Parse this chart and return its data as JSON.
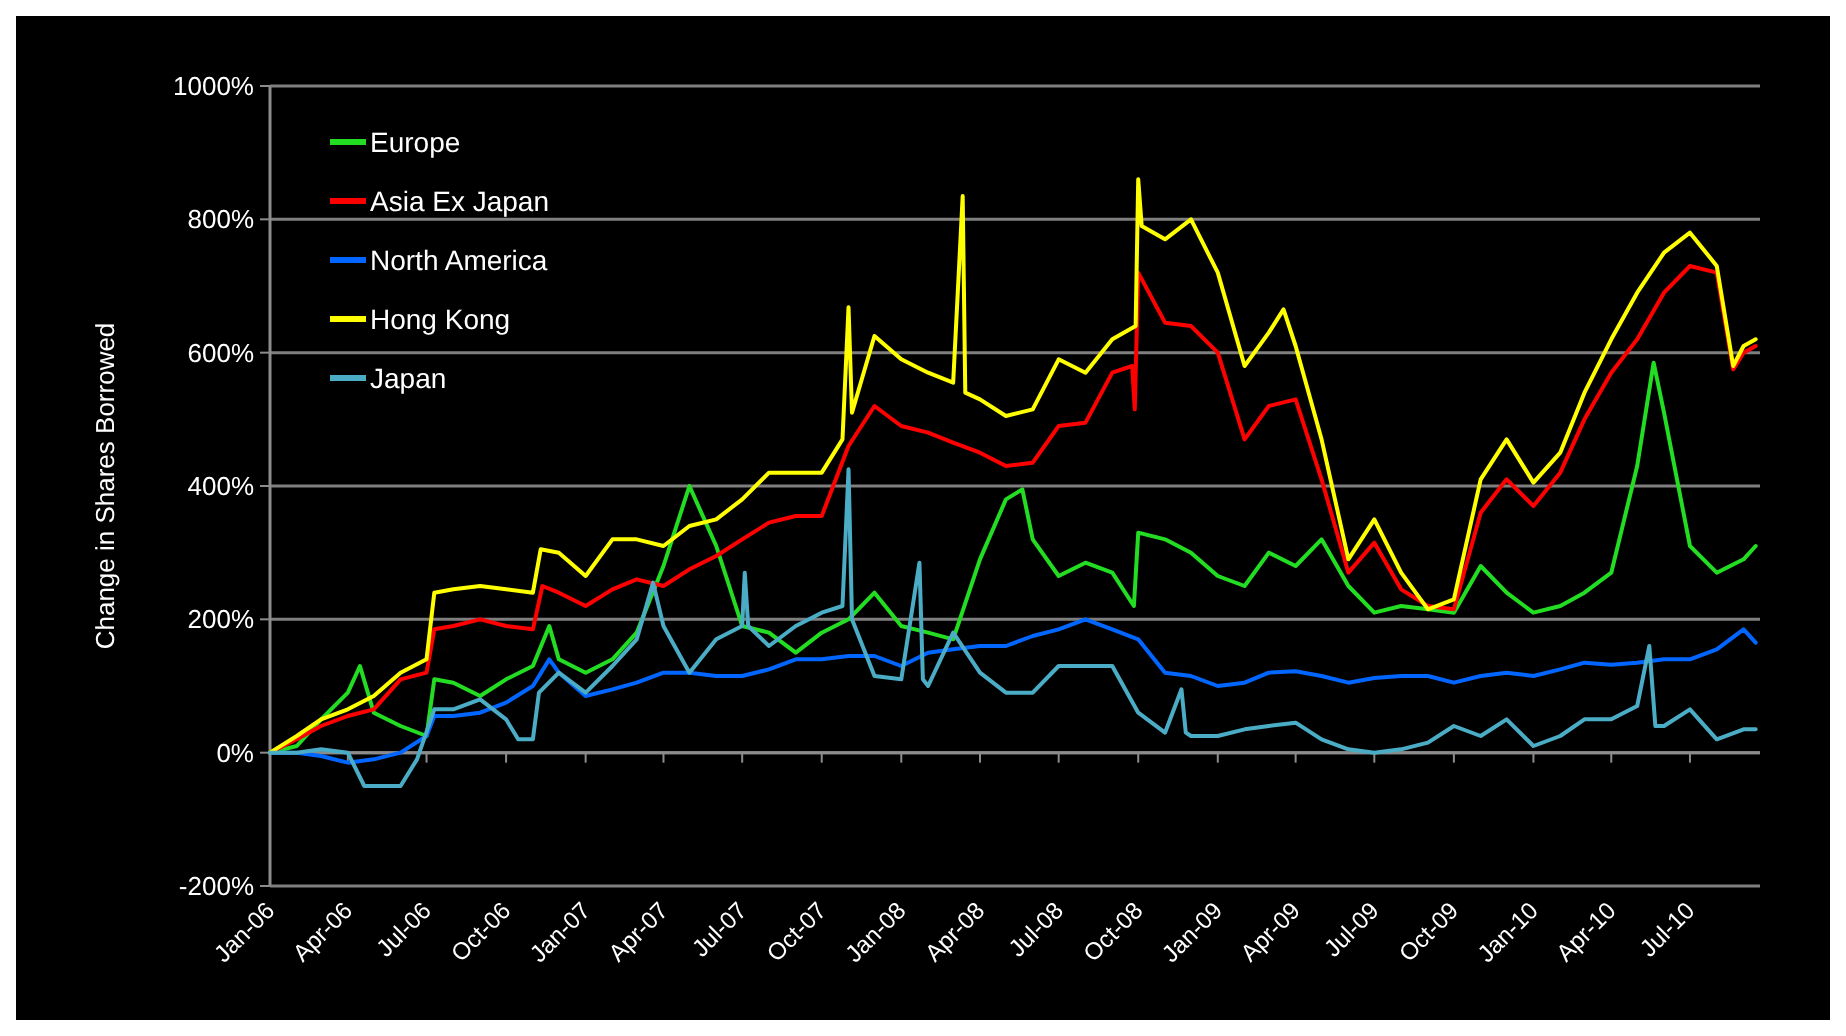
{
  "chart_data": {
    "type": "line",
    "ylabel": "Change in Shares Borrowed",
    "xlim": [
      "2006-01-01",
      "2010-09-20"
    ],
    "ylim": [
      -200,
      1000
    ],
    "yticks": [
      {
        "value": -200,
        "label": "-200%"
      },
      {
        "value": 0,
        "label": "0%"
      },
      {
        "value": 200,
        "label": "200%"
      },
      {
        "value": 400,
        "label": "400%"
      },
      {
        "value": 600,
        "label": "600%"
      },
      {
        "value": 800,
        "label": "800%"
      },
      {
        "value": 1000,
        "label": "1000%"
      }
    ],
    "xticks": [
      {
        "value": "2006-01",
        "label": "Jan-06"
      },
      {
        "value": "2006-04",
        "label": "Apr-06"
      },
      {
        "value": "2006-07",
        "label": "Jul-06"
      },
      {
        "value": "2006-10",
        "label": "Oct-06"
      },
      {
        "value": "2007-01",
        "label": "Jan-07"
      },
      {
        "value": "2007-04",
        "label": "Apr-07"
      },
      {
        "value": "2007-07",
        "label": "Jul-07"
      },
      {
        "value": "2007-10",
        "label": "Oct-07"
      },
      {
        "value": "2008-01",
        "label": "Jan-08"
      },
      {
        "value": "2008-04",
        "label": "Apr-08"
      },
      {
        "value": "2008-07",
        "label": "Jul-08"
      },
      {
        "value": "2008-10",
        "label": "Oct-08"
      },
      {
        "value": "2009-01",
        "label": "Jan-09"
      },
      {
        "value": "2009-04",
        "label": "Apr-09"
      },
      {
        "value": "2009-07",
        "label": "Jul-09"
      },
      {
        "value": "2009-10",
        "label": "Oct-09"
      },
      {
        "value": "2010-01",
        "label": "Jan-10"
      },
      {
        "value": "2010-04",
        "label": "Apr-10"
      },
      {
        "value": "2010-07",
        "label": "Jul-10"
      }
    ],
    "grid": "y",
    "legend": "top left",
    "marker": "none",
    "line_style": "solid",
    "series": [
      {
        "name": "Europe",
        "color": "#22dd22",
        "x": [
          "2006-01",
          "2006-02",
          "2006-03",
          "2006-04",
          "2006-04-15",
          "2006-05",
          "2006-06",
          "2006-07-01",
          "2006-07-10",
          "2006-08",
          "2006-09",
          "2006-10",
          "2006-11",
          "2006-11-20",
          "2006-12",
          "2007-01",
          "2007-02",
          "2007-03",
          "2007-04",
          "2007-05",
          "2007-06",
          "2007-07",
          "2007-08",
          "2007-09",
          "2007-10",
          "2007-11",
          "2007-12",
          "2008-01",
          "2008-02",
          "2008-03",
          "2008-04",
          "2008-05",
          "2008-05-20",
          "2008-06",
          "2008-07",
          "2008-08",
          "2008-09",
          "2008-09-26",
          "2008-10",
          "2008-11",
          "2008-12",
          "2009-01",
          "2009-02",
          "2009-03",
          "2009-04",
          "2009-05",
          "2009-06",
          "2009-07",
          "2009-08",
          "2009-09",
          "2009-10",
          "2009-11",
          "2009-12",
          "2010-01",
          "2010-02",
          "2010-03",
          "2010-04",
          "2010-05",
          "2010-05-20",
          "2010-06",
          "2010-07",
          "2010-08",
          "2010-09",
          "2010-09-15"
        ],
        "values": [
          0,
          10,
          50,
          90,
          130,
          60,
          40,
          25,
          110,
          105,
          85,
          110,
          130,
          190,
          140,
          120,
          140,
          180,
          280,
          400,
          310,
          190,
          180,
          150,
          180,
          200,
          240,
          190,
          180,
          170,
          290,
          380,
          395,
          320,
          265,
          285,
          270,
          220,
          330,
          320,
          300,
          265,
          250,
          300,
          280,
          320,
          250,
          210,
          220,
          215,
          210,
          280,
          240,
          210,
          220,
          240,
          270,
          430,
          585,
          510,
          310,
          270,
          290,
          310
        ]
      },
      {
        "name": "Asia Ex Japan",
        "color": "#ff0000",
        "x": [
          "2006-01",
          "2006-02",
          "2006-03",
          "2006-04",
          "2006-05",
          "2006-06",
          "2006-07-01",
          "2006-07-10",
          "2006-08",
          "2006-09",
          "2006-10",
          "2006-11-01",
          "2006-11-12",
          "2006-12",
          "2007-01",
          "2007-02",
          "2007-03",
          "2007-04",
          "2007-05",
          "2007-06",
          "2007-07",
          "2007-08",
          "2007-09",
          "2007-10",
          "2007-11",
          "2007-12",
          "2008-01",
          "2008-02",
          "2008-03",
          "2008-04",
          "2008-05",
          "2008-06",
          "2008-07",
          "2008-08",
          "2008-09",
          "2008-09-24",
          "2008-09-27",
          "2008-10",
          "2008-11",
          "2008-12",
          "2009-01",
          "2009-02",
          "2009-03",
          "2009-04",
          "2009-05",
          "2009-06",
          "2009-07",
          "2009-08",
          "2009-09",
          "2009-10",
          "2009-11",
          "2009-12",
          "2010-01",
          "2010-02",
          "2010-03",
          "2010-04",
          "2010-05",
          "2010-06",
          "2010-07",
          "2010-08-01",
          "2010-08-20",
          "2010-09-01",
          "2010-09-15"
        ],
        "values": [
          0,
          20,
          40,
          55,
          65,
          110,
          120,
          185,
          190,
          200,
          190,
          185,
          250,
          240,
          220,
          245,
          260,
          250,
          275,
          295,
          320,
          345,
          355,
          355,
          460,
          520,
          490,
          480,
          465,
          450,
          430,
          435,
          490,
          495,
          570,
          580,
          515,
          720,
          645,
          640,
          600,
          470,
          520,
          530,
          410,
          270,
          315,
          245,
          220,
          215,
          360,
          410,
          370,
          420,
          500,
          570,
          620,
          690,
          730,
          720,
          575,
          600,
          610
        ]
      },
      {
        "name": "North America",
        "color": "#0066ff",
        "x": [
          "2006-01",
          "2006-02",
          "2006-03",
          "2006-04",
          "2006-05",
          "2006-06",
          "2006-07-01",
          "2006-07-10",
          "2006-08",
          "2006-09",
          "2006-10",
          "2006-11",
          "2006-11-20",
          "2006-12",
          "2007-01",
          "2007-02",
          "2007-03",
          "2007-04",
          "2007-05",
          "2007-06",
          "2007-07",
          "2007-08",
          "2007-09",
          "2007-10",
          "2007-11",
          "2007-12",
          "2008-01",
          "2008-02",
          "2008-03",
          "2008-04",
          "2008-05",
          "2008-06",
          "2008-07",
          "2008-08",
          "2008-09",
          "2008-10",
          "2008-11",
          "2008-12",
          "2009-01",
          "2009-02",
          "2009-03",
          "2009-04",
          "2009-05",
          "2009-06",
          "2009-07",
          "2009-08",
          "2009-09",
          "2009-10",
          "2009-11",
          "2009-12",
          "2010-01",
          "2010-02",
          "2010-03",
          "2010-04",
          "2010-05",
          "2010-06",
          "2010-07",
          "2010-08",
          "2010-09",
          "2010-09-15"
        ],
        "values": [
          0,
          0,
          -5,
          -15,
          -10,
          0,
          25,
          55,
          55,
          60,
          75,
          100,
          140,
          120,
          85,
          95,
          105,
          120,
          120,
          115,
          115,
          125,
          140,
          140,
          145,
          145,
          130,
          150,
          155,
          160,
          160,
          175,
          185,
          200,
          185,
          170,
          120,
          115,
          100,
          105,
          120,
          122,
          115,
          105,
          112,
          115,
          115,
          105,
          115,
          120,
          115,
          125,
          135,
          132,
          135,
          140,
          140,
          155,
          185,
          165
        ]
      },
      {
        "name": "Hong Kong",
        "color": "#ffff00",
        "x": [
          "2006-01",
          "2006-02",
          "2006-03",
          "2006-04",
          "2006-05",
          "2006-06",
          "2006-07-01",
          "2006-07-10",
          "2006-08",
          "2006-09",
          "2006-10",
          "2006-11-01",
          "2006-11-10",
          "2006-12",
          "2007-01",
          "2007-02",
          "2007-03",
          "2007-04",
          "2007-05",
          "2007-06",
          "2007-07",
          "2007-08",
          "2007-09",
          "2007-10",
          "2007-10-25",
          "2007-11-01",
          "2007-11-05",
          "2007-12",
          "2008-01",
          "2008-02",
          "2008-03-01",
          "2008-03-12",
          "2008-03-15",
          "2008-04",
          "2008-05",
          "2008-06",
          "2008-07",
          "2008-08",
          "2008-09",
          "2008-09-28",
          "2008-10-01",
          "2008-10-05",
          "2008-11",
          "2008-12",
          "2009-01",
          "2009-02",
          "2009-03-01",
          "2009-03-18",
          "2009-04",
          "2009-05",
          "2009-06",
          "2009-07",
          "2009-08",
          "2009-09",
          "2009-10",
          "2009-11",
          "2009-12",
          "2010-01",
          "2010-02",
          "2010-03",
          "2010-04",
          "2010-05",
          "2010-06",
          "2010-07",
          "2010-08-01",
          "2010-08-20",
          "2010-09-01",
          "2010-09-15"
        ],
        "values": [
          0,
          25,
          50,
          65,
          85,
          120,
          140,
          240,
          245,
          250,
          245,
          240,
          305,
          300,
          265,
          320,
          320,
          310,
          340,
          350,
          380,
          420,
          420,
          420,
          470,
          668,
          510,
          625,
          590,
          570,
          555,
          835,
          540,
          530,
          505,
          515,
          590,
          570,
          620,
          640,
          860,
          790,
          770,
          800,
          720,
          580,
          630,
          665,
          610,
          470,
          290,
          350,
          270,
          215,
          230,
          410,
          470,
          405,
          450,
          540,
          620,
          690,
          750,
          780,
          730,
          580,
          610,
          620
        ]
      },
      {
        "name": "Japan",
        "color": "#4bacc6",
        "x": [
          "2006-01",
          "2006-02",
          "2006-03",
          "2006-04",
          "2006-04-20",
          "2006-05",
          "2006-06",
          "2006-06-20",
          "2006-07-10",
          "2006-08",
          "2006-09",
          "2006-10",
          "2006-10-15",
          "2006-11-01",
          "2006-11-08",
          "2006-12",
          "2007-01",
          "2007-02",
          "2007-03",
          "2007-03-20",
          "2007-04",
          "2007-05",
          "2007-06",
          "2007-07-01",
          "2007-07-04",
          "2007-07-08",
          "2007-08",
          "2007-09",
          "2007-10",
          "2007-10-25",
          "2007-11-01",
          "2007-11-05",
          "2007-12",
          "2008-01-01",
          "2008-01-22",
          "2008-01-26",
          "2008-02",
          "2008-03",
          "2008-04",
          "2008-05",
          "2008-06",
          "2008-07",
          "2008-08",
          "2008-09",
          "2008-10",
          "2008-11",
          "2008-11-20",
          "2008-11-25",
          "2008-12",
          "2009-01",
          "2009-02",
          "2009-03",
          "2009-04",
          "2009-05",
          "2009-06",
          "2009-07",
          "2009-08",
          "2009-09",
          "2009-10",
          "2009-11",
          "2009-12",
          "2010-01",
          "2010-02",
          "2010-03",
          "2010-04",
          "2010-05",
          "2010-05-15",
          "2010-05-22",
          "2010-06",
          "2010-07",
          "2010-08",
          "2010-09",
          "2010-09-15"
        ],
        "values": [
          0,
          0,
          5,
          0,
          -50,
          -50,
          -50,
          -10,
          65,
          65,
          80,
          50,
          20,
          20,
          90,
          120,
          90,
          130,
          170,
          255,
          190,
          120,
          170,
          190,
          270,
          190,
          160,
          190,
          210,
          220,
          425,
          200,
          115,
          110,
          285,
          110,
          100,
          180,
          120,
          90,
          90,
          130,
          130,
          130,
          60,
          30,
          95,
          30,
          25,
          25,
          35,
          40,
          45,
          20,
          5,
          0,
          5,
          15,
          40,
          25,
          50,
          10,
          25,
          50,
          50,
          70,
          160,
          40,
          40,
          65,
          20,
          35,
          35
        ]
      }
    ]
  }
}
